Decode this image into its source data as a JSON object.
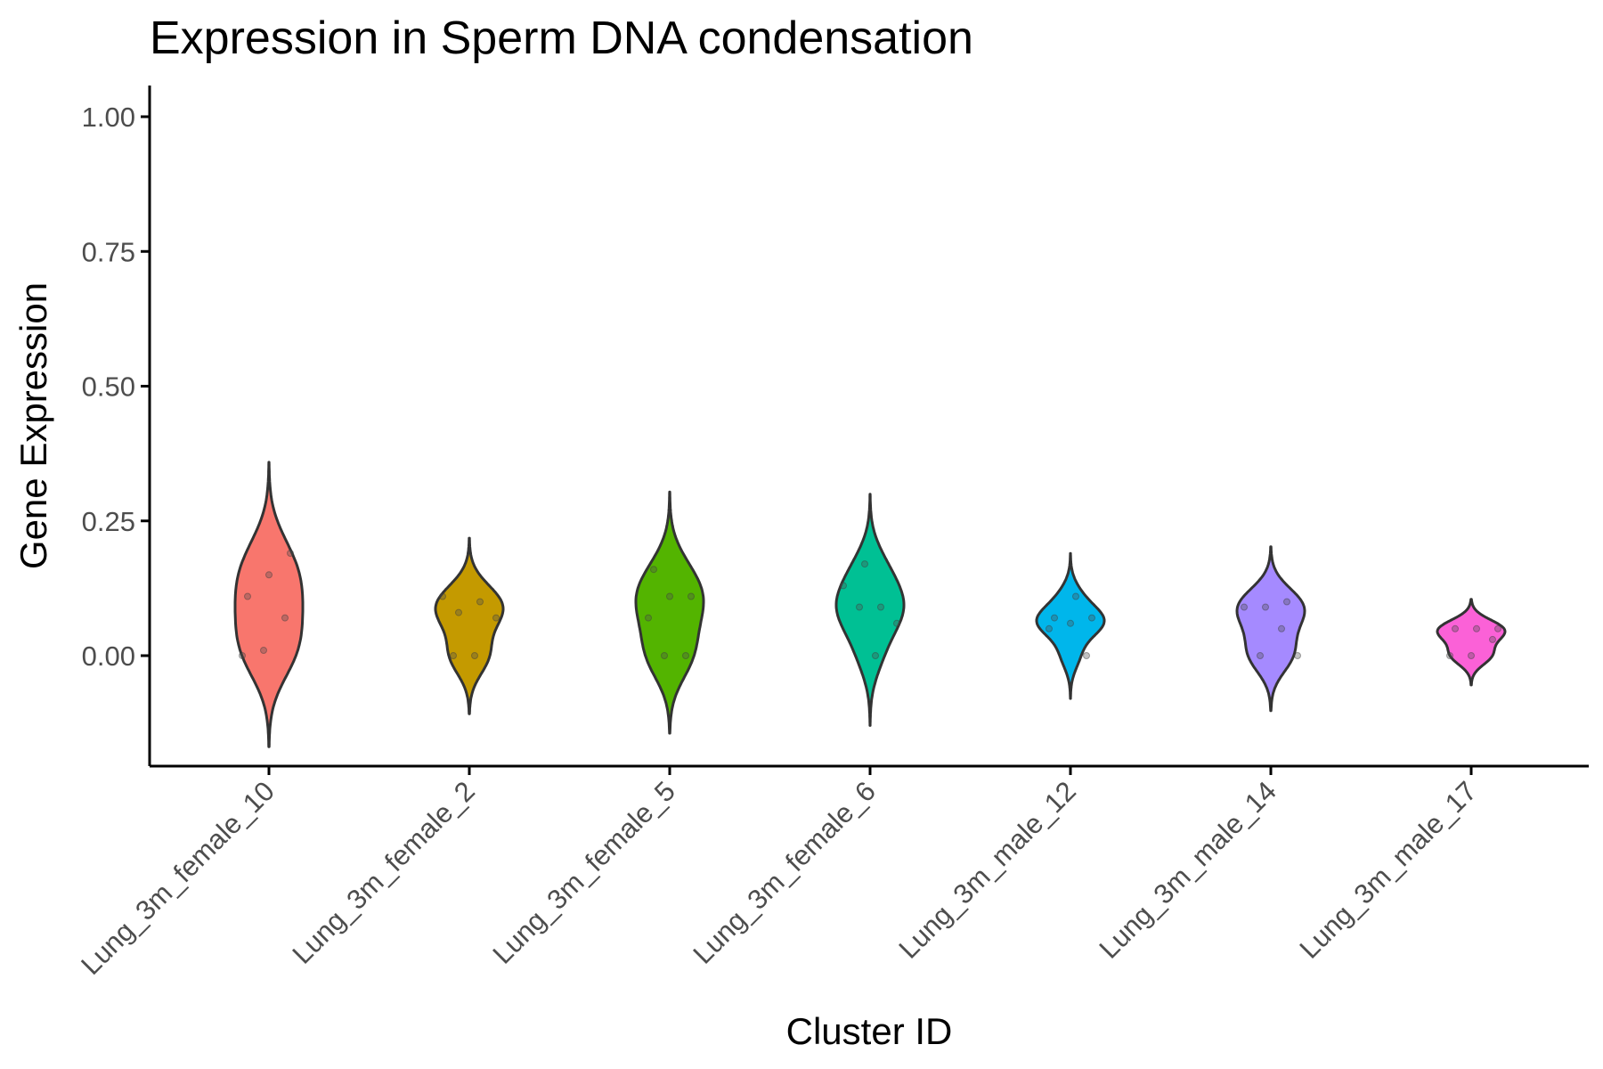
{
  "chart_data": {
    "type": "violin",
    "title": "Expression in Sperm DNA condensation",
    "xlabel": "Cluster ID",
    "ylabel": "Gene Expression",
    "ylim": [
      -0.2,
      1.05
    ],
    "y_ticks": [
      0.0,
      0.25,
      0.5,
      0.75,
      1.0
    ],
    "y_tick_labels": [
      "0.00",
      "0.25",
      "0.50",
      "0.75",
      "1.00"
    ],
    "grid": false,
    "legend": "none",
    "categories": [
      "Lung_3m_female_10",
      "Lung_3m_female_2",
      "Lung_3m_female_5",
      "Lung_3m_female_6",
      "Lung_3m_male_12",
      "Lung_3m_male_14",
      "Lung_3m_male_17"
    ],
    "colors": [
      "#F8766D",
      "#C49A00",
      "#53B400",
      "#00C094",
      "#00B6EB",
      "#A58AFF",
      "#FB61D7"
    ],
    "points": [
      [
        0.0,
        0.01,
        0.07,
        0.11,
        0.15,
        0.19
      ],
      [
        0.0,
        0.0,
        0.07,
        0.08,
        0.1,
        0.11
      ],
      [
        0.0,
        0.0,
        0.07,
        0.11,
        0.11,
        0.16
      ],
      [
        0.0,
        0.06,
        0.09,
        0.09,
        0.13,
        0.17
      ],
      [
        0.0,
        0.05,
        0.06,
        0.07,
        0.07,
        0.11
      ],
      [
        0.0,
        0.0,
        0.05,
        0.09,
        0.09,
        0.1
      ],
      [
        0.0,
        0.0,
        0.03,
        0.05,
        0.05,
        0.05
      ]
    ]
  }
}
